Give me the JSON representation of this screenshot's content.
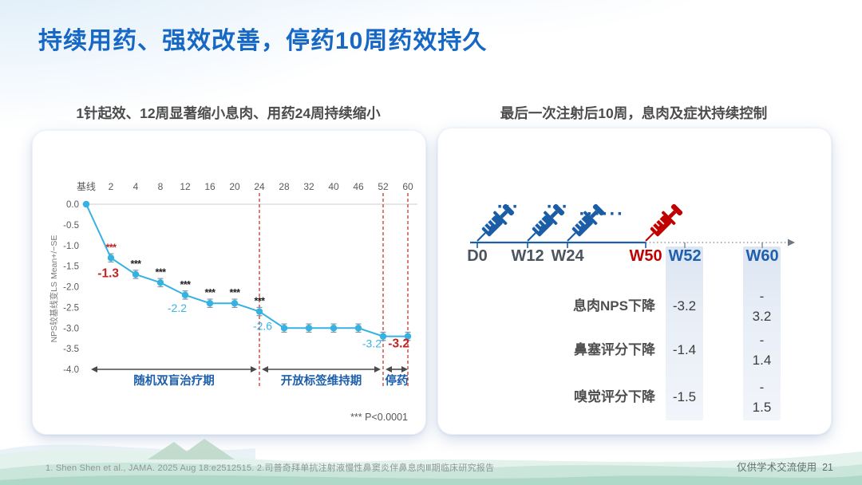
{
  "slide": {
    "title": "持续用药、强效改善，停药10周药效持久",
    "footer_reference": "1. Shen Shen et al., JAMA. 2025 Aug 18:e2512515. 2.司普奇拜单抗注射液慢性鼻窦炎伴鼻息肉Ⅲ期临床研究报告",
    "footer_disclaimer": "仅供学术交流使用",
    "page_number": "21"
  },
  "left_panel": {
    "subtitle": "1针起效、12周显著缩小息肉、用药24周持续缩小",
    "significance_footnote": "*** P<0.0001"
  },
  "chart_data": {
    "type": "line",
    "title": "1针起效、12周显著缩小息肉、用药24周持续缩小",
    "xlabel": "",
    "ylabel": "NPS较基线变LS Mean+/−SE",
    "categories": [
      "基线",
      "2",
      "4",
      "8",
      "12",
      "16",
      "20",
      "24",
      "28",
      "32",
      "40",
      "46",
      "52",
      "60"
    ],
    "values": [
      0.0,
      -1.3,
      -1.7,
      -1.9,
      -2.2,
      -2.4,
      -2.4,
      -2.6,
      -3.0,
      -3.0,
      -3.0,
      -3.0,
      -3.2,
      -3.2
    ],
    "se_half": 0.1,
    "ylim": [
      -4.0,
      0.0
    ],
    "yticks": [
      0.0,
      -0.5,
      -1.0,
      -1.5,
      -2.0,
      -2.5,
      -3.0,
      -3.5,
      -4.0
    ],
    "grid": false,
    "line_color": "#35b2e2",
    "significance": [
      {
        "category": "2",
        "stars": "***",
        "color": "#c32422"
      },
      {
        "category": "4",
        "stars": "***",
        "color": "#222222"
      },
      {
        "category": "8",
        "stars": "***",
        "color": "#222222"
      },
      {
        "category": "12",
        "stars": "***",
        "color": "#222222"
      },
      {
        "category": "16",
        "stars": "***",
        "color": "#222222"
      },
      {
        "category": "20",
        "stars": "***",
        "color": "#222222"
      },
      {
        "category": "24",
        "stars": "***",
        "color": "#222222"
      }
    ],
    "point_labels": [
      {
        "category": "2",
        "text": "-1.3",
        "color": "#c32422",
        "bold": true
      },
      {
        "category": "12",
        "text": "-2.2",
        "color": "#3cb4e5",
        "bold": false
      },
      {
        "category": "24",
        "text": "-2.6",
        "color": "#3cb4e5",
        "bold": false
      },
      {
        "category": "52",
        "text": "-3.2",
        "color": "#3cb4e5",
        "bold": false
      },
      {
        "category": "60",
        "text": "-3.2",
        "color": "#c32422",
        "bold": true
      }
    ],
    "dashed_lines": {
      "categories": [
        "24",
        "52",
        "60"
      ],
      "color": "#c0392e"
    },
    "phases": [
      {
        "label": "随机双盲治疗期",
        "from": "基线",
        "to": "24"
      },
      {
        "label": "开放标签维持期",
        "from": "24",
        "to": "52"
      },
      {
        "label": "停药",
        "from": "52",
        "to": "60"
      }
    ]
  },
  "right_panel": {
    "subtitle": "最后一次注射后10周，息肉及症状持续控制",
    "timeline": {
      "axis_labels": [
        {
          "text": "D0",
          "type": "dose-blue"
        },
        {
          "text": "W12",
          "type": "dose-blue"
        },
        {
          "text": "W24",
          "type": "dose-blue"
        },
        {
          "text": "W50",
          "type": "dose-red"
        },
        {
          "text": "W52",
          "type": "followup"
        },
        {
          "text": "W60",
          "type": "followup"
        }
      ],
      "dots": [
        "···",
        "···",
        "······"
      ],
      "syringe_blue": "#1a5da6",
      "syringe_red": "#c00000"
    },
    "table": {
      "columns": [
        "W52",
        "W60"
      ],
      "rows": [
        {
          "label": "息肉NPS下降",
          "w52": "-3.2",
          "w60": "-\n3.2"
        },
        {
          "label": "鼻塞评分下降",
          "w52": "-1.4",
          "w60": "-\n1.4"
        },
        {
          "label": "嗅觉评分下降",
          "w52": "-1.5",
          "w60": "-\n1.5"
        }
      ]
    }
  }
}
